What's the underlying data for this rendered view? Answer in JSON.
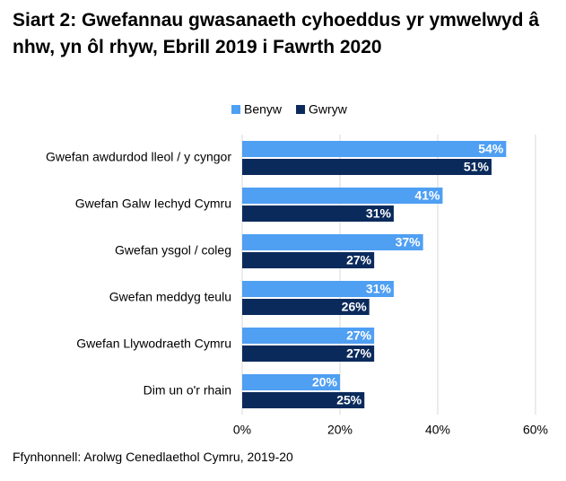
{
  "chart_data": {
    "type": "hbar",
    "title": "Siart 2: Gwefannau gwasanaeth cyhoeddus yr ymwelwyd â nhw, yn ôl rhyw, Ebrill 2019 i Fawrth 2020",
    "categories": [
      "Gwefan awdurdod lleol / y cyngor",
      "Gwefan Galw Iechyd Cymru",
      "Gwefan ysgol / coleg",
      "Gwefan meddyg teulu",
      "Gwefan Llywodraeth Cymru",
      "Dim un o'r rhain"
    ],
    "series": [
      {
        "name": "Benyw",
        "color": "#4f9ff3",
        "values": [
          54,
          41,
          37,
          31,
          27,
          20
        ],
        "value_labels": [
          "54%",
          "41%",
          "37%",
          "31%",
          "27%",
          "20%"
        ]
      },
      {
        "name": "Gwryw",
        "color": "#0b2a5c",
        "values": [
          51,
          31,
          27,
          26,
          27,
          25
        ],
        "value_labels": [
          "51%",
          "31%",
          "27%",
          "26%",
          "27%",
          "25%"
        ]
      }
    ],
    "xlim": [
      0,
      60
    ],
    "xticks": [
      {
        "value": 0,
        "label": "0%"
      },
      {
        "value": 20,
        "label": "20%"
      },
      {
        "value": 40,
        "label": "40%"
      },
      {
        "value": 60,
        "label": "60%"
      }
    ],
    "grid": true,
    "legend": "top",
    "source": "Ffynhonnell: Arolwg Cenedlaethol Cymru, 2019-20"
  }
}
